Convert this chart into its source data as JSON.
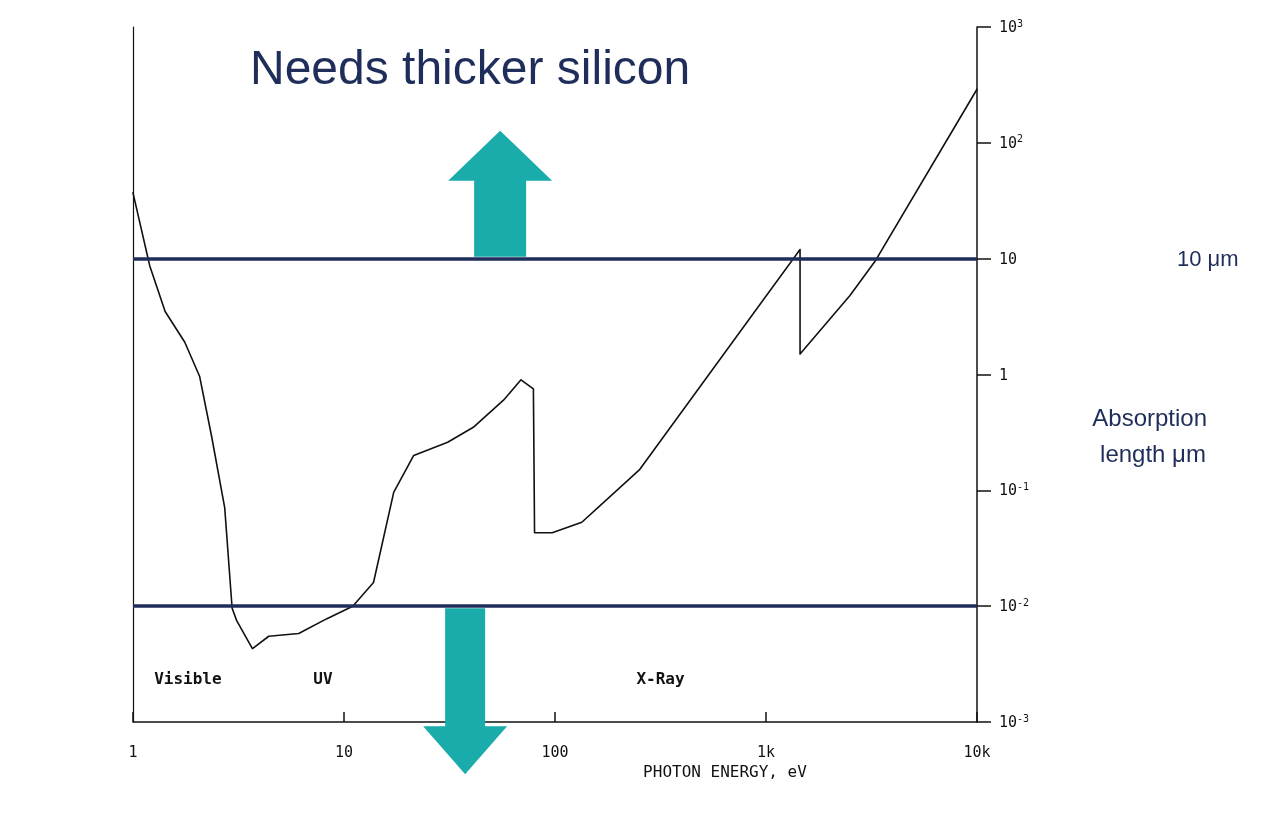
{
  "chart_data": {
    "type": "line",
    "title": "Needs thicker silicon",
    "xlabel": "PHOTON ENERGY, eV",
    "ylabel": "Absorption length μm",
    "log": "xy",
    "xlim": [
      1,
      10000
    ],
    "ylim": [
      0.001,
      1000
    ],
    "xticks": [
      1,
      10,
      100,
      {
        "value": 1000,
        "label": "1k"
      },
      {
        "value": 10000,
        "label": "10k"
      }
    ],
    "yticks": [
      {
        "value": 0.001,
        "label": "10$^{-3}$"
      },
      {
        "value": 0.01,
        "label": "10$^{-2}$"
      },
      {
        "value": 0.1,
        "label": "10$^{-1}$"
      },
      1,
      10,
      {
        "value": 100,
        "label": "10$^{2}$"
      },
      {
        "value": 1000,
        "label": "10$^{3}$"
      }
    ],
    "grid": false,
    "marker": "none",
    "line_style": "solid",
    "series": [
      {
        "color": "#111111",
        "x": [
          1,
          1.2,
          1.42,
          1.76,
          2.07,
          2.36,
          2.72,
          2.95,
          3.1,
          3.68,
          4.4,
          6.1,
          8.3,
          11,
          13.8,
          17.2,
          21.4,
          31,
          41,
          57,
          69,
          79,
          80,
          97,
          134,
          251,
          1450,
          1450,
          2500,
          3300,
          10000
        ],
        "values": [
          37,
          8.7,
          3.5,
          1.9,
          0.96,
          0.29,
          0.071,
          0.0096,
          0.0075,
          0.0043,
          0.0055,
          0.0058,
          0.0078,
          0.01,
          0.016,
          0.096,
          0.2,
          0.26,
          0.35,
          0.6,
          0.9,
          0.75,
          0.043,
          0.043,
          0.053,
          0.15,
          12,
          1.5,
          4.8,
          9.6,
          290
        ]
      }
    ],
    "ref_lines": [
      {
        "axis": "y",
        "value": 10,
        "label": "10 μm",
        "color": "#1f2d5a"
      },
      {
        "axis": "y",
        "value": 0.01,
        "color": "#1f2d5a"
      }
    ],
    "annotations": [
      "Visible",
      "UV",
      "X-Ray"
    ]
  }
}
